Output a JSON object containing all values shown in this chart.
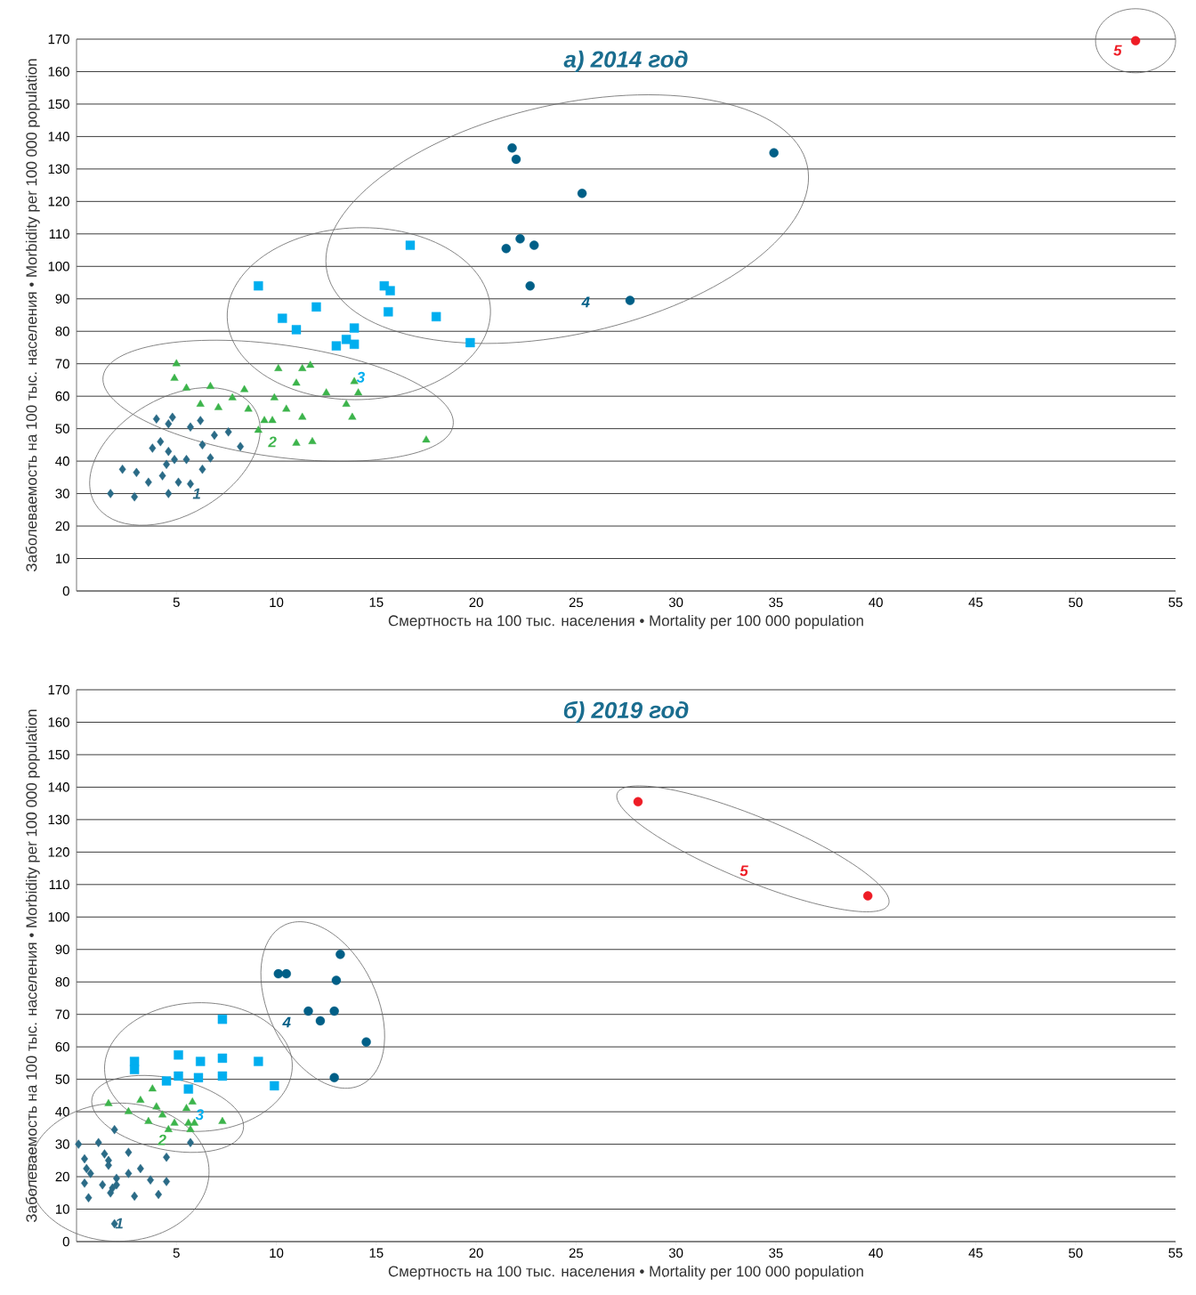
{
  "chart_data": [
    {
      "type": "scatter",
      "title": "а) 2014 год",
      "xlabel": "Смертность на 100 тыс. населения • Mortality per 100 000 population",
      "ylabel": "Заболеваемость на 100 тыс. населения • Morbidity per 100 000 population",
      "xlim": [
        0,
        55
      ],
      "xticks": [
        5,
        10,
        15,
        20,
        25,
        30,
        35,
        40,
        45,
        50,
        55
      ],
      "ylim": [
        0,
        170
      ],
      "yticks": [
        0,
        10,
        20,
        30,
        40,
        50,
        60,
        70,
        80,
        90,
        100,
        110,
        120,
        130,
        140,
        150,
        160,
        170
      ],
      "grid": "y",
      "series": [
        {
          "name": "1",
          "color": "#2a6b87",
          "marker": "diamond",
          "x": [
            1.7,
            2.3,
            2.9,
            3.0,
            3.6,
            3.8,
            4.0,
            4.2,
            4.3,
            4.5,
            4.6,
            4.6,
            4.6,
            4.8,
            4.9,
            5.1,
            5.5,
            5.7,
            5.7,
            6.2,
            6.3,
            6.3,
            6.7,
            6.9,
            7.6,
            8.2
          ],
          "values": [
            30,
            37.5,
            29,
            36.5,
            33.5,
            44,
            53,
            46,
            35.5,
            39,
            51.5,
            30,
            43,
            53.5,
            40.5,
            33.5,
            40.5,
            50.5,
            33,
            52.5,
            45,
            37.5,
            41,
            48,
            49,
            44.5
          ]
        },
        {
          "name": "2",
          "color": "#3cb44b",
          "marker": "triangle",
          "x": [
            5.0,
            4.9,
            5.5,
            6.2,
            6.7,
            7.1,
            7.8,
            8.4,
            8.6,
            9.1,
            9.4,
            9.8,
            9.9,
            10.1,
            10.5,
            11.0,
            11.3,
            11.3,
            11.7,
            11.8,
            11.0,
            12.5,
            13.5,
            13.8,
            13.9,
            14.1,
            17.5
          ],
          "values": [
            70,
            65.5,
            62.5,
            57.5,
            63,
            56.5,
            59.5,
            62,
            56,
            49.5,
            52.5,
            52.5,
            59.5,
            68.5,
            56,
            64,
            53.5,
            68.5,
            69.5,
            46,
            45.5,
            61,
            57.5,
            53.5,
            64.5,
            61,
            46.5
          ]
        },
        {
          "name": "3",
          "color": "#00aeef",
          "marker": "square",
          "x": [
            9.1,
            10.3,
            11.0,
            12.0,
            13.0,
            13.5,
            13.9,
            13.9,
            15.4,
            15.7,
            15.6,
            16.7,
            18.0,
            19.7
          ],
          "values": [
            94,
            84,
            80.5,
            87.5,
            75.5,
            77.5,
            81,
            76,
            94,
            92.5,
            86,
            106.5,
            84.5,
            76.5
          ]
        },
        {
          "name": "4",
          "color": "#005f87",
          "marker": "circle",
          "x": [
            21.8,
            22.0,
            25.3,
            34.9,
            21.5,
            22.2,
            22.9,
            22.7,
            27.7
          ],
          "values": [
            136.5,
            133,
            122.5,
            135,
            105.5,
            108.5,
            106.5,
            94,
            89.5
          ]
        },
        {
          "name": "5",
          "color": "#ee1c25",
          "marker": "circle",
          "x": [
            53.0
          ],
          "values": [
            169.5
          ]
        }
      ]
    },
    {
      "type": "scatter",
      "title": "б) 2019 год",
      "xlabel": "Смертность на 100 тыс. населения • Mortality per 100 000 population",
      "ylabel": "Заболеваемость на 100 тыс. населения • Morbidity per 100 000 population",
      "xlim": [
        0,
        55
      ],
      "xticks": [
        5,
        10,
        15,
        20,
        25,
        30,
        35,
        40,
        45,
        50,
        55
      ],
      "ylim": [
        0,
        170
      ],
      "yticks": [
        0,
        10,
        20,
        30,
        40,
        50,
        60,
        70,
        80,
        90,
        100,
        110,
        120,
        130,
        140,
        150,
        160,
        170
      ],
      "grid": "y",
      "series": [
        {
          "name": "1",
          "color": "#2a6b87",
          "marker": "diamond",
          "x": [
            0.1,
            0.4,
            0.5,
            0.7,
            0.4,
            0.6,
            1.1,
            1.4,
            1.6,
            1.6,
            1.3,
            1.7,
            1.9,
            2.0,
            2.0,
            1.9,
            2.6,
            2.6,
            3.2,
            2.9,
            3.7,
            4.1,
            4.5,
            4.5,
            5.7,
            1.8
          ],
          "values": [
            30,
            25.5,
            22.5,
            21,
            18,
            13.5,
            30.5,
            27,
            25,
            23.5,
            17.5,
            15,
            34.5,
            19.5,
            17.5,
            5.5,
            27.5,
            21,
            22.5,
            14,
            19,
            14.5,
            18.5,
            26,
            30.5,
            16.5
          ]
        },
        {
          "name": "2",
          "color": "#3cb44b",
          "marker": "triangle",
          "x": [
            1.6,
            2.6,
            3.2,
            3.8,
            4.0,
            4.3,
            3.6,
            4.6,
            4.9,
            5.5,
            5.8,
            5.6,
            5.9,
            5.7,
            7.3
          ],
          "values": [
            42.5,
            40,
            43.5,
            47,
            41.5,
            39,
            37,
            34.5,
            36.5,
            41,
            43,
            36.5,
            36.5,
            34.5,
            37
          ]
        },
        {
          "name": "3",
          "color": "#00aeef",
          "marker": "square",
          "x": [
            2.9,
            2.9,
            5.1,
            6.2,
            7.3,
            9.1,
            4.5,
            5.1,
            6.1,
            7.3,
            5.6,
            9.9,
            7.3
          ],
          "values": [
            55.5,
            53,
            57.5,
            55.5,
            56.5,
            55.5,
            49.5,
            51,
            50.5,
            51,
            47,
            48,
            68.5
          ]
        },
        {
          "name": "4",
          "color": "#005f87",
          "marker": "circle",
          "x": [
            13.2,
            10.1,
            10.5,
            13.0,
            11.6,
            12.9,
            12.2,
            14.5,
            12.9
          ],
          "values": [
            88.5,
            82.5,
            82.5,
            80.5,
            71,
            71,
            68,
            61.5,
            50.5
          ]
        },
        {
          "name": "5",
          "color": "#ee1c25",
          "marker": "circle",
          "x": [
            28.1,
            39.6
          ],
          "values": [
            135.5,
            106.5
          ]
        }
      ]
    }
  ]
}
